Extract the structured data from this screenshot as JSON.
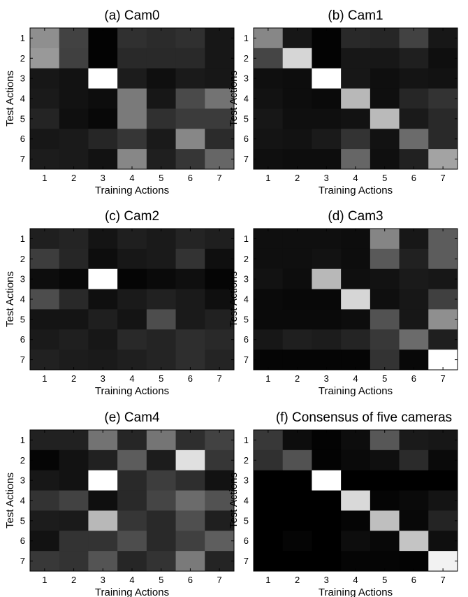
{
  "chart_data": [
    {
      "type": "heatmap",
      "title": "(a) Cam0",
      "xlabel": "Training Actions",
      "ylabel": "Test Actions",
      "x_categories": [
        "1",
        "2",
        "3",
        "4",
        "5",
        "6",
        "7"
      ],
      "y_categories": [
        "1",
        "2",
        "3",
        "4",
        "5",
        "6",
        "7"
      ],
      "colormap": "gray",
      "value_range": [
        0,
        1
      ],
      "values": [
        [
          0.56,
          0.26,
          0.01,
          0.19,
          0.17,
          0.19,
          0.09
        ],
        [
          0.6,
          0.25,
          0.01,
          0.16,
          0.16,
          0.16,
          0.09
        ],
        [
          0.09,
          0.07,
          1.0,
          0.11,
          0.06,
          0.1,
          0.09
        ],
        [
          0.1,
          0.07,
          0.05,
          0.48,
          0.09,
          0.29,
          0.45
        ],
        [
          0.14,
          0.06,
          0.03,
          0.48,
          0.19,
          0.23,
          0.23
        ],
        [
          0.09,
          0.1,
          0.15,
          0.21,
          0.1,
          0.53,
          0.17
        ],
        [
          0.11,
          0.1,
          0.07,
          0.53,
          0.12,
          0.21,
          0.4
        ]
      ]
    },
    {
      "type": "heatmap",
      "title": "(b) Cam1",
      "xlabel": "Training Actions",
      "ylabel": "Test Actions",
      "x_categories": [
        "1",
        "2",
        "3",
        "4",
        "5",
        "6",
        "7"
      ],
      "y_categories": [
        "1",
        "2",
        "3",
        "4",
        "5",
        "6",
        "7"
      ],
      "colormap": "gray",
      "value_range": [
        0,
        1
      ],
      "values": [
        [
          0.53,
          0.09,
          0.01,
          0.16,
          0.15,
          0.26,
          0.09
        ],
        [
          0.27,
          0.84,
          0.01,
          0.09,
          0.09,
          0.12,
          0.06
        ],
        [
          0.06,
          0.05,
          1.0,
          0.09,
          0.06,
          0.08,
          0.07
        ],
        [
          0.07,
          0.05,
          0.04,
          0.72,
          0.06,
          0.15,
          0.2
        ],
        [
          0.09,
          0.06,
          0.06,
          0.07,
          0.73,
          0.1,
          0.16
        ],
        [
          0.08,
          0.07,
          0.1,
          0.2,
          0.07,
          0.42,
          0.16
        ],
        [
          0.06,
          0.05,
          0.05,
          0.4,
          0.06,
          0.13,
          0.64
        ]
      ]
    },
    {
      "type": "heatmap",
      "title": "(c) Cam2",
      "xlabel": "Training Actions",
      "ylabel": "Test Actions",
      "x_categories": [
        "1",
        "2",
        "3",
        "4",
        "5",
        "6",
        "7"
      ],
      "y_categories": [
        "1",
        "2",
        "3",
        "4",
        "5",
        "6",
        "7"
      ],
      "colormap": "gray",
      "value_range": [
        0,
        1
      ],
      "values": [
        [
          0.12,
          0.14,
          0.08,
          0.12,
          0.1,
          0.14,
          0.12
        ],
        [
          0.24,
          0.15,
          0.05,
          0.09,
          0.1,
          0.2,
          0.06
        ],
        [
          0.05,
          0.03,
          1.0,
          0.02,
          0.04,
          0.06,
          0.02
        ],
        [
          0.3,
          0.16,
          0.06,
          0.1,
          0.13,
          0.1,
          0.06
        ],
        [
          0.08,
          0.08,
          0.12,
          0.08,
          0.3,
          0.1,
          0.13
        ],
        [
          0.1,
          0.12,
          0.09,
          0.16,
          0.14,
          0.18,
          0.16
        ],
        [
          0.13,
          0.11,
          0.1,
          0.12,
          0.14,
          0.18,
          0.14
        ]
      ]
    },
    {
      "type": "heatmap",
      "title": "(d) Cam3",
      "xlabel": "Training Actions",
      "ylabel": "Test Actions",
      "x_categories": [
        "1",
        "2",
        "3",
        "4",
        "5",
        "6",
        "7"
      ],
      "y_categories": [
        "1",
        "2",
        "3",
        "4",
        "5",
        "6",
        "7"
      ],
      "colormap": "gray",
      "value_range": [
        0,
        1
      ],
      "values": [
        [
          0.06,
          0.06,
          0.06,
          0.05,
          0.52,
          0.09,
          0.36
        ],
        [
          0.06,
          0.06,
          0.07,
          0.05,
          0.35,
          0.13,
          0.36
        ],
        [
          0.07,
          0.05,
          0.72,
          0.06,
          0.07,
          0.1,
          0.09
        ],
        [
          0.04,
          0.03,
          0.03,
          0.84,
          0.06,
          0.09,
          0.25
        ],
        [
          0.04,
          0.04,
          0.04,
          0.05,
          0.32,
          0.09,
          0.56
        ],
        [
          0.09,
          0.12,
          0.11,
          0.14,
          0.22,
          0.42,
          0.12
        ],
        [
          0.02,
          0.02,
          0.02,
          0.02,
          0.2,
          0.03,
          1.0
        ]
      ]
    },
    {
      "type": "heatmap",
      "title": "(e) Cam4",
      "xlabel": "Training Actions",
      "ylabel": "Test Actions",
      "x_categories": [
        "1",
        "2",
        "3",
        "4",
        "5",
        "6",
        "7"
      ],
      "y_categories": [
        "1",
        "2",
        "3",
        "4",
        "5",
        "6",
        "7"
      ],
      "colormap": "gray",
      "value_range": [
        0,
        1
      ],
      "values": [
        [
          0.13,
          0.13,
          0.45,
          0.15,
          0.46,
          0.18,
          0.26
        ],
        [
          0.02,
          0.07,
          0.13,
          0.36,
          0.11,
          0.88,
          0.21
        ],
        [
          0.09,
          0.07,
          1.0,
          0.16,
          0.24,
          0.18,
          0.07
        ],
        [
          0.2,
          0.26,
          0.06,
          0.16,
          0.27,
          0.42,
          0.32
        ],
        [
          0.11,
          0.1,
          0.72,
          0.21,
          0.16,
          0.31,
          0.12
        ],
        [
          0.07,
          0.2,
          0.2,
          0.3,
          0.16,
          0.25,
          0.37
        ],
        [
          0.22,
          0.2,
          0.33,
          0.15,
          0.2,
          0.48,
          0.14
        ]
      ]
    },
    {
      "type": "heatmap",
      "title": "(f) Consensus of five cameras",
      "xlabel": "Training Actions",
      "ylabel": "Test Actions",
      "x_categories": [
        "1",
        "2",
        "3",
        "4",
        "5",
        "6",
        "7"
      ],
      "y_categories": [
        "1",
        "2",
        "3",
        "4",
        "5",
        "6",
        "7"
      ],
      "colormap": "gray",
      "value_range": [
        0,
        1
      ],
      "values": [
        [
          0.22,
          0.05,
          0.01,
          0.05,
          0.34,
          0.1,
          0.09
        ],
        [
          0.19,
          0.32,
          0.01,
          0.04,
          0.06,
          0.17,
          0.04
        ],
        [
          0.0,
          0.0,
          1.0,
          0.0,
          0.0,
          0.0,
          0.0
        ],
        [
          0.0,
          0.0,
          0.0,
          0.85,
          0.02,
          0.04,
          0.08
        ],
        [
          0.0,
          0.0,
          0.0,
          0.02,
          0.75,
          0.03,
          0.14
        ],
        [
          0.0,
          0.02,
          0.0,
          0.05,
          0.03,
          0.77,
          0.06
        ],
        [
          0.0,
          0.0,
          0.0,
          0.02,
          0.02,
          0.01,
          0.95
        ]
      ]
    }
  ]
}
